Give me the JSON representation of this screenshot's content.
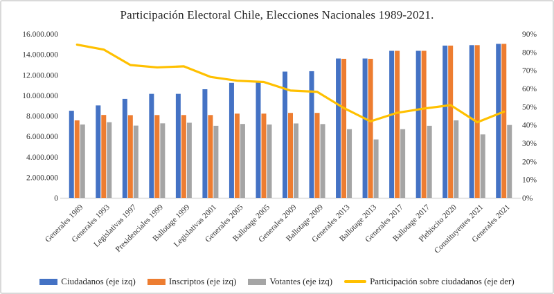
{
  "chart_data": {
    "type": "bar+line combo",
    "title": "Participación Electoral Chile, Elecciones Nacionales 1989-2021.",
    "categories": [
      "Generales 1989",
      "Generales 1993",
      "Legislativas 1997",
      "Presidenciales 1999",
      "Ballotage 1999",
      "Legislativas 2001",
      "Generales 2005",
      "Ballotage 2005",
      "Generales 2009",
      "Ballotage 2009",
      "Generales 2013",
      "Ballotage 2013",
      "Generales 2017",
      "Ballotage 2017",
      "Plebiscito 2020",
      "Constituyentes 2021",
      "Generales 2021"
    ],
    "series": [
      {
        "key": "ciudadanos",
        "name": "Ciudadanos (eje izq)",
        "type": "bar",
        "axis": "left",
        "color": "#4472C4",
        "values": [
          8500000,
          9020000,
          9660000,
          10150000,
          10150000,
          10600000,
          11220000,
          11260000,
          12320000,
          12360000,
          13600000,
          13600000,
          14350000,
          14350000,
          14860000,
          14900000,
          15030000
        ]
      },
      {
        "key": "inscriptos",
        "name": "Inscriptos (eje izq)",
        "type": "bar",
        "axis": "left",
        "color": "#ED7D31",
        "values": [
          7560000,
          8090000,
          8070000,
          8080000,
          8080000,
          8080000,
          8220000,
          8220000,
          8290000,
          8290000,
          13570000,
          13570000,
          14350000,
          14350000,
          14860000,
          14900000,
          15030000
        ]
      },
      {
        "key": "votantes",
        "name": "Votantes (eje izq)",
        "type": "bar",
        "axis": "left",
        "color": "#A5A5A5",
        "values": [
          7160000,
          7380000,
          7050000,
          7270000,
          7330000,
          7030000,
          7210000,
          7160000,
          7260000,
          7200000,
          6700000,
          5700000,
          6700000,
          7030000,
          7560000,
          6190000,
          7110000
        ]
      },
      {
        "key": "participacion",
        "name": "Participación sobre ciudadanos (eje der)",
        "type": "line",
        "axis": "right",
        "color": "#FFC000",
        "values": [
          84.1,
          81.4,
          72.9,
          71.6,
          72.2,
          66.4,
          64.3,
          63.6,
          58.9,
          58.2,
          49.3,
          42.0,
          46.7,
          49.0,
          50.9,
          41.5,
          47.3
        ]
      }
    ],
    "left_axis": {
      "min": 0,
      "max": 16000000,
      "step": 2000000,
      "tick_labels": [
        "0",
        "2.000.000",
        "4.000.000",
        "6.000.000",
        "8.000.000",
        "10.000.000",
        "12.000.000",
        "14.000.000",
        "16.000.000"
      ]
    },
    "right_axis": {
      "min": 0,
      "max": 90,
      "step": 10,
      "tick_labels": [
        "0%",
        "10%",
        "20%",
        "30%",
        "40%",
        "50%",
        "60%",
        "70%",
        "80%",
        "90%"
      ]
    },
    "grid": false,
    "legend_position": "bottom",
    "frame_border_color": "#D9D9D9",
    "axis_line_color": "#D9D9D9",
    "text_color": "#262626"
  }
}
